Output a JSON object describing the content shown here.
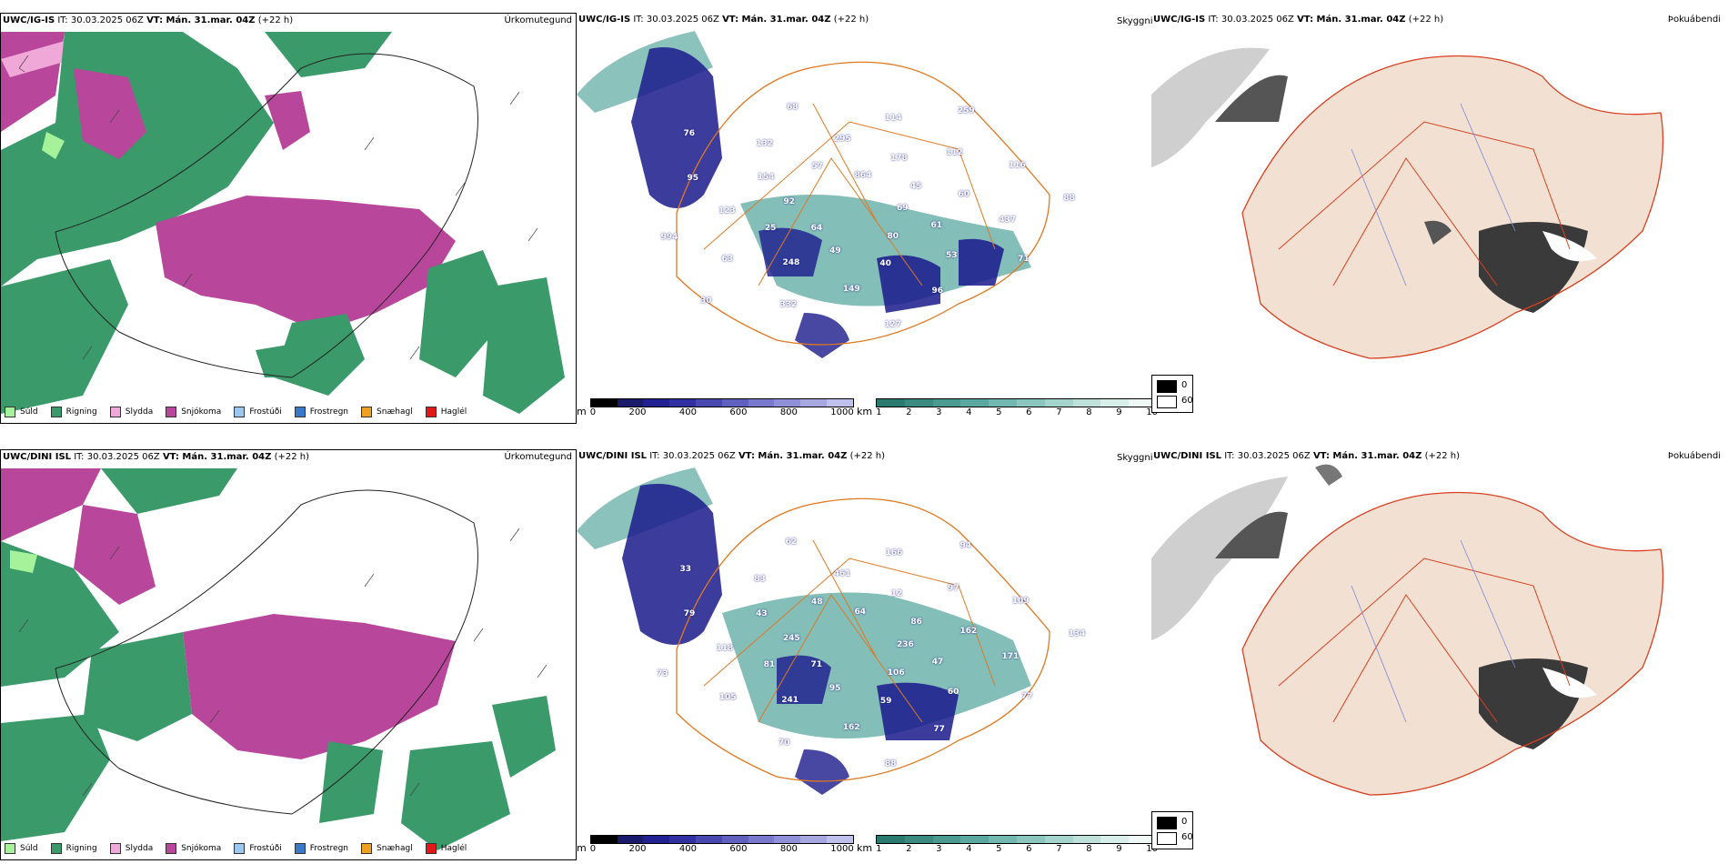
{
  "rows": [
    {
      "model": "UWC/IG-IS",
      "precip_title": {
        "model": "UWC/IG-IS",
        "it": "IT: 30.03.2025 06Z",
        "vt": "VT: Mán. 31.mar. 04Z",
        "lead": "(+22 h)"
      },
      "visibility_title": {
        "model": "UWC/IG-IS",
        "it": "IT: 30.03.2025 06Z",
        "vt": "VT: Mán. 31.mar. 04Z",
        "lead": "(+22 h)"
      },
      "fog_title": {
        "model": "UWC/IG-IS",
        "it": "IT: 30.03.2025 06Z",
        "vt": "VT: Mán. 31.mar. 04Z",
        "lead": "(+22 h)"
      },
      "ceiling_labels": [
        "69",
        "64",
        "864",
        "80",
        "92",
        "45",
        "49",
        "57",
        "61",
        "25",
        "178",
        "40",
        "154",
        "60",
        "248",
        "295",
        "53",
        "123",
        "112",
        "149",
        "132",
        "437",
        "63",
        "114",
        "96",
        "95",
        "116",
        "332",
        "68",
        "71",
        "994",
        "259",
        "127",
        "76",
        "88",
        "30"
      ]
    },
    {
      "model": "UWC/DINI ISL",
      "precip_title": {
        "model": "UWC/DINI ISL",
        "it": "IT: 30.03.2025 06Z",
        "vt": "VT: Mán. 31.mar. 04Z",
        "lead": "(+22 h)"
      },
      "visibility_title": {
        "model": "UWC/DINI ISL",
        "it": "IT: 30.03.2025 06Z",
        "vt": "VT: Mán. 31.mar. 04Z",
        "lead": "(+22 h)"
      },
      "fog_title": {
        "model": "UWC/DINI ISL",
        "it": "IT: 30.03.2025 06Z",
        "vt": "VT: Mán. 31.mar. 04Z",
        "lead": "(+22 h)"
      },
      "ceiling_labels": [
        "236",
        "71",
        "64",
        "106",
        "245",
        "86",
        "95",
        "48",
        "47",
        "81",
        "12",
        "59",
        "43",
        "162",
        "241",
        "461",
        "60",
        "118",
        "97",
        "162",
        "83",
        "171",
        "105",
        "166",
        "77",
        "79",
        "109",
        "70",
        "62",
        "77",
        "73",
        "94",
        "88",
        "33",
        "134"
      ]
    }
  ],
  "labels": {
    "precip_type": "Úrkomutegund",
    "visibility": "Skyggni",
    "fog": "Þokuábendi"
  },
  "precip_legend": [
    {
      "label": "Súld",
      "color": "#a6f29a"
    },
    {
      "label": "Rigning",
      "color": "#3a9a6a"
    },
    {
      "label": "Slydda",
      "color": "#f0a8d8"
    },
    {
      "label": "Snjókoma",
      "color": "#b8469a"
    },
    {
      "label": "Frostúði",
      "color": "#9cc8f0"
    },
    {
      "label": "Frostregn",
      "color": "#3a78c8"
    },
    {
      "label": "Snæhagl",
      "color": "#f0a020"
    },
    {
      "label": "Haglél",
      "color": "#e01818"
    }
  ],
  "ceiling_bar": {
    "unit": "m",
    "ticks": [
      "0",
      "200",
      "400",
      "600",
      "800",
      "1000"
    ]
  },
  "cloud_bar": {
    "unit": "km",
    "ticks": [
      "1",
      "2",
      "3",
      "4",
      "5",
      "6",
      "7",
      "8",
      "9",
      "10"
    ]
  },
  "fog_legend": {
    "high": "0",
    "low": "60"
  },
  "colors": {
    "snow": "#b8469a",
    "rain": "#3a9a6a",
    "sleet": "#f0a8d8",
    "drizzle": "#a6f29a",
    "teal": "#5aa8a0",
    "navy": "#1a1a8c",
    "road": "#e07820",
    "land_fog": "#f2e0d2",
    "fog_dark": "#3a3a3a"
  }
}
